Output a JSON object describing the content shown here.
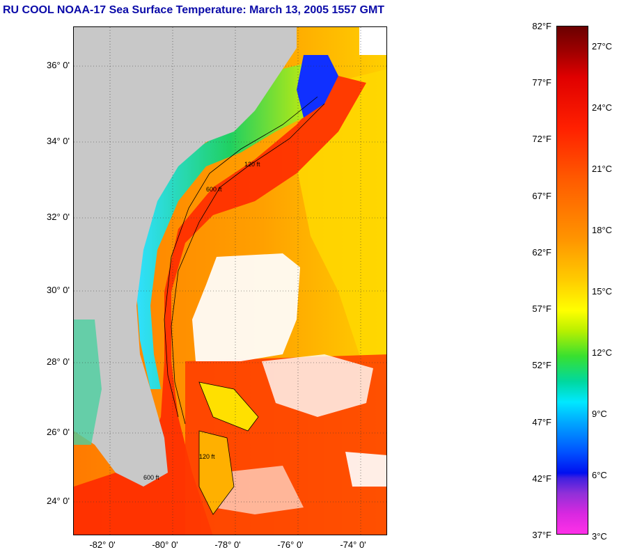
{
  "title": "RU COOL  NOAA-17  Sea Surface Temperature:  March 13, 2005 1557 GMT",
  "y_labels": [
    "36° 0'",
    "34° 0'",
    "32° 0'",
    "30° 0'",
    "28° 0'",
    "26° 0'",
    "24° 0'"
  ],
  "x_labels": [
    "-82° 0'",
    "-80° 0'",
    "-78° 0'",
    "-76° 0'",
    "-74° 0'"
  ],
  "contour_labels": [
    "120 ft",
    "600 ft"
  ],
  "colorbar": {
    "fahrenheit": [
      "82°F",
      "77°F",
      "72°F",
      "67°F",
      "62°F",
      "57°F",
      "52°F",
      "47°F",
      "42°F",
      "37°F"
    ],
    "celsius": [
      "27°C",
      "24°C",
      "21°C",
      "18°C",
      "15°C",
      "12°C",
      "9°C",
      "6°C",
      "3°C"
    ]
  },
  "colors": {
    "title": "#0a0aa8",
    "land": "#c8c8c8",
    "cloud": "#ffffff",
    "gulf_stream": "#ff2a00",
    "offshore": "#ff8a00",
    "coastal_cold": "#00a0ff"
  }
}
